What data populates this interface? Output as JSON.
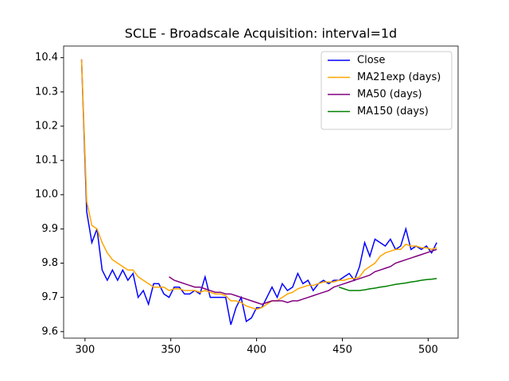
{
  "chart_data": {
    "type": "line",
    "title": "SCLE - Broadscale Acquisition: interval=1d",
    "x": [
      298,
      301,
      304,
      307,
      310,
      313,
      316,
      319,
      322,
      325,
      328,
      331,
      334,
      337,
      340,
      343,
      346,
      349,
      352,
      355,
      358,
      361,
      364,
      367,
      370,
      373,
      376,
      379,
      382,
      385,
      388,
      391,
      394,
      397,
      400,
      403,
      406,
      409,
      412,
      415,
      418,
      421,
      424,
      427,
      430,
      433,
      436,
      439,
      442,
      445,
      448,
      451,
      454,
      457,
      460,
      463,
      466,
      469,
      472,
      475,
      478,
      481,
      484,
      487,
      490,
      493,
      496,
      499,
      502,
      505
    ],
    "series": [
      {
        "name": "Close",
        "color": "#0000ff",
        "values": [
          10.395,
          9.95,
          9.86,
          9.9,
          9.78,
          9.75,
          9.78,
          9.75,
          9.78,
          9.75,
          9.77,
          9.7,
          9.72,
          9.68,
          9.74,
          9.74,
          9.71,
          9.7,
          9.73,
          9.73,
          9.71,
          9.71,
          9.72,
          9.71,
          9.76,
          9.7,
          9.7,
          9.7,
          9.7,
          9.62,
          9.67,
          9.7,
          9.63,
          9.64,
          9.67,
          9.67,
          9.7,
          9.73,
          9.7,
          9.74,
          9.72,
          9.73,
          9.77,
          9.74,
          9.75,
          9.72,
          9.74,
          9.75,
          9.74,
          9.75,
          9.75,
          9.76,
          9.77,
          9.75,
          9.79,
          9.86,
          9.82,
          9.87,
          9.86,
          9.85,
          9.87,
          9.84,
          9.85,
          9.9,
          9.84,
          9.85,
          9.84,
          9.85,
          9.83,
          9.86
        ]
      },
      {
        "name": "MA21exp (days)",
        "color": "#ffa500",
        "values": [
          10.395,
          9.98,
          9.91,
          9.9,
          9.86,
          9.83,
          9.81,
          9.8,
          9.79,
          9.78,
          9.78,
          9.76,
          9.75,
          9.74,
          9.73,
          9.73,
          9.73,
          9.72,
          9.725,
          9.725,
          9.72,
          9.72,
          9.72,
          9.715,
          9.72,
          9.715,
          9.71,
          9.71,
          9.705,
          9.69,
          9.69,
          9.685,
          9.675,
          9.67,
          9.665,
          9.67,
          9.68,
          9.69,
          9.69,
          9.7,
          9.71,
          9.715,
          9.725,
          9.73,
          9.735,
          9.735,
          9.74,
          9.745,
          9.745,
          9.745,
          9.75,
          9.75,
          9.755,
          9.755,
          9.76,
          9.78,
          9.79,
          9.8,
          9.82,
          9.83,
          9.835,
          9.84,
          9.84,
          9.855,
          9.85,
          9.85,
          9.845,
          9.845,
          9.84,
          9.845
        ]
      },
      {
        "name": "MA50 (days)",
        "color": "#800080",
        "values": [
          null,
          null,
          null,
          null,
          null,
          null,
          null,
          null,
          null,
          null,
          null,
          null,
          null,
          null,
          null,
          null,
          null,
          9.76,
          9.75,
          9.745,
          9.74,
          9.735,
          9.73,
          9.73,
          9.725,
          9.72,
          9.715,
          9.715,
          9.71,
          9.71,
          9.705,
          9.7,
          9.695,
          9.69,
          9.685,
          9.68,
          9.685,
          9.69,
          9.69,
          9.69,
          9.685,
          9.69,
          9.69,
          9.695,
          9.7,
          9.705,
          9.71,
          9.715,
          9.72,
          9.73,
          9.735,
          9.74,
          9.745,
          9.75,
          9.755,
          9.76,
          9.765,
          9.775,
          9.78,
          9.785,
          9.79,
          9.8,
          9.805,
          9.81,
          9.815,
          9.82,
          9.825,
          9.83,
          9.835,
          9.84
        ]
      },
      {
        "name": "MA150 (days)",
        "color": "#008000",
        "values": [
          null,
          null,
          null,
          null,
          null,
          null,
          null,
          null,
          null,
          null,
          null,
          null,
          null,
          null,
          null,
          null,
          null,
          null,
          null,
          null,
          null,
          null,
          null,
          null,
          null,
          null,
          null,
          null,
          null,
          null,
          null,
          null,
          null,
          null,
          null,
          null,
          null,
          null,
          null,
          null,
          null,
          null,
          null,
          null,
          null,
          null,
          null,
          null,
          null,
          null,
          9.73,
          9.725,
          9.72,
          9.72,
          9.72,
          9.722,
          9.725,
          9.727,
          9.73,
          9.732,
          9.735,
          9.738,
          9.74,
          9.742,
          9.745,
          9.747,
          9.75,
          9.752,
          9.753,
          9.755
        ]
      }
    ],
    "xlim": [
      287.55,
      517.45
    ],
    "xticks": [
      300,
      350,
      400,
      450,
      500
    ],
    "ylim": [
      9.581,
      10.434
    ],
    "yticks": [
      9.6,
      9.7,
      9.8,
      9.9,
      {
        "value": 10,
        "label": "10.0"
      },
      10.1,
      10.2,
      10.3,
      10.4
    ],
    "legend": "upper right"
  }
}
